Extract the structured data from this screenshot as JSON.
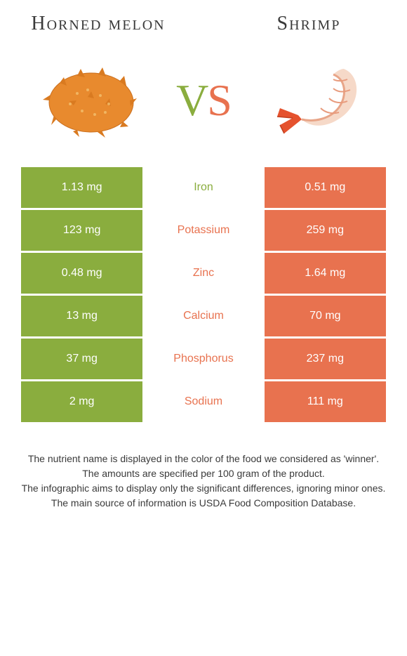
{
  "colors": {
    "left_bg": "#8aad3e",
    "right_bg": "#e8724f",
    "left_label": "#8aad3e",
    "right_label": "#e8724f",
    "text": "#3a3a3a"
  },
  "foods": {
    "left": {
      "name": "Horned melon"
    },
    "right": {
      "name": "Shrimp"
    }
  },
  "vs": {
    "v": "V",
    "s": "S"
  },
  "rows": [
    {
      "label": "Iron",
      "left": "1.13 mg",
      "right": "0.51 mg",
      "winner": "left"
    },
    {
      "label": "Potassium",
      "left": "123 mg",
      "right": "259 mg",
      "winner": "right"
    },
    {
      "label": "Zinc",
      "left": "0.48 mg",
      "right": "1.64 mg",
      "winner": "right"
    },
    {
      "label": "Calcium",
      "left": "13 mg",
      "right": "70 mg",
      "winner": "right"
    },
    {
      "label": "Phosphorus",
      "left": "37 mg",
      "right": "237 mg",
      "winner": "right"
    },
    {
      "label": "Sodium",
      "left": "2 mg",
      "right": "111 mg",
      "winner": "right"
    }
  ],
  "footnotes": [
    "The nutrient name is displayed in the color of the food we considered as 'winner'.",
    "The amounts are specified per 100 gram of the product.",
    "The infographic aims to display only the significant differences, ignoring minor ones.",
    "The main source of information is USDA Food Composition Database."
  ]
}
